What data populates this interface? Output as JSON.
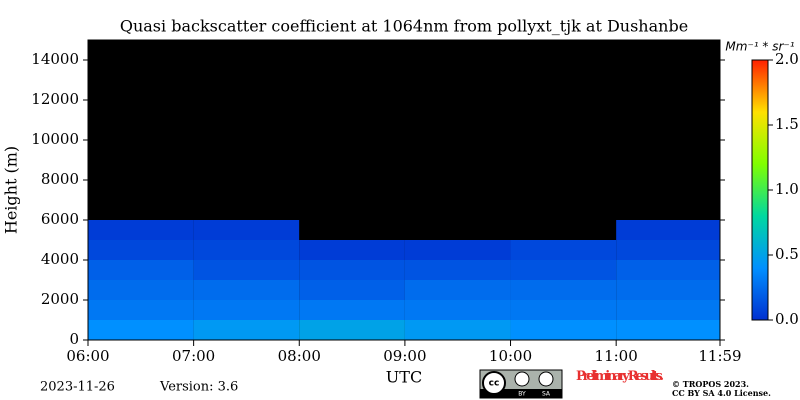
{
  "chart_data": {
    "type": "heatmap",
    "title": "Quasi backscatter coefficient at 1064nm from pollyxt_tjk at Dushanbe",
    "y_label": "Height (m)",
    "x_label": "UTC",
    "x": [
      6,
      7,
      8,
      9,
      10,
      11
    ],
    "y": [
      0,
      1000,
      2000,
      3000,
      4000,
      5000,
      6000,
      7000,
      8000,
      9000,
      10000,
      11000,
      12000,
      13000,
      14000
    ],
    "values": [
      [
        0.4,
        0.45,
        0.5,
        0.45,
        0.4,
        0.4
      ],
      [
        0.3,
        0.3,
        0.3,
        0.3,
        0.3,
        0.3
      ],
      [
        0.25,
        0.25,
        0.2,
        0.25,
        0.25,
        0.25
      ],
      [
        0.2,
        0.15,
        0.15,
        0.15,
        0.15,
        0.2
      ],
      [
        0.1,
        0.1,
        0.05,
        0.05,
        0.1,
        0.1
      ],
      [
        0.05,
        0.05,
        null,
        null,
        null,
        0.05
      ],
      [
        null,
        null,
        null,
        null,
        null,
        null
      ],
      [
        null,
        null,
        null,
        null,
        null,
        null
      ],
      [
        null,
        null,
        null,
        null,
        null,
        null
      ],
      [
        null,
        null,
        null,
        null,
        null,
        null
      ],
      [
        null,
        null,
        null,
        null,
        null,
        null
      ],
      [
        null,
        null,
        null,
        null,
        null,
        null
      ],
      [
        null,
        null,
        null,
        null,
        null,
        null
      ],
      [
        null,
        null,
        null,
        null,
        null,
        null
      ],
      [
        null,
        null,
        null,
        null,
        null,
        null
      ]
    ],
    "xlim": [
      6,
      11.983
    ],
    "xticks": [
      {
        "value": 6,
        "label": "06:00"
      },
      {
        "value": 7,
        "label": "07:00"
      },
      {
        "value": 8,
        "label": "08:00"
      },
      {
        "value": 9,
        "label": "09:00"
      },
      {
        "value": 10,
        "label": "10:00"
      },
      {
        "value": 11,
        "label": "11:00"
      },
      {
        "value": 11.983,
        "label": "11:59"
      }
    ],
    "ylim": [
      0,
      15000
    ],
    "yticks": [
      0,
      2000,
      4000,
      6000,
      8000,
      10000,
      12000,
      14000
    ],
    "colorbar": {
      "label": "Mm⁻¹ * sr⁻¹",
      "lim": [
        0,
        2
      ],
      "ticks": [
        {
          "value": 0,
          "label": "0.0"
        },
        {
          "value": 0.5,
          "label": "0.5"
        },
        {
          "value": 1,
          "label": "1.0"
        },
        {
          "value": 1.5,
          "label": "1.5"
        },
        {
          "value": 2,
          "label": "2.0"
        }
      ],
      "colors": [
        "#0030d0",
        "#0090ff",
        "#00d8a0",
        "#80ff00",
        "#ffe000",
        "#ff2000"
      ]
    },
    "background": "#000000",
    "date": "2023-11-26",
    "version": "Version: 3.6",
    "notice": "Preliminary Results.",
    "copyright": "© TROPOS 2023.",
    "license": "CC BY SA 4.0 License.",
    "badge": [
      "cc",
      "BY",
      "SA"
    ]
  }
}
